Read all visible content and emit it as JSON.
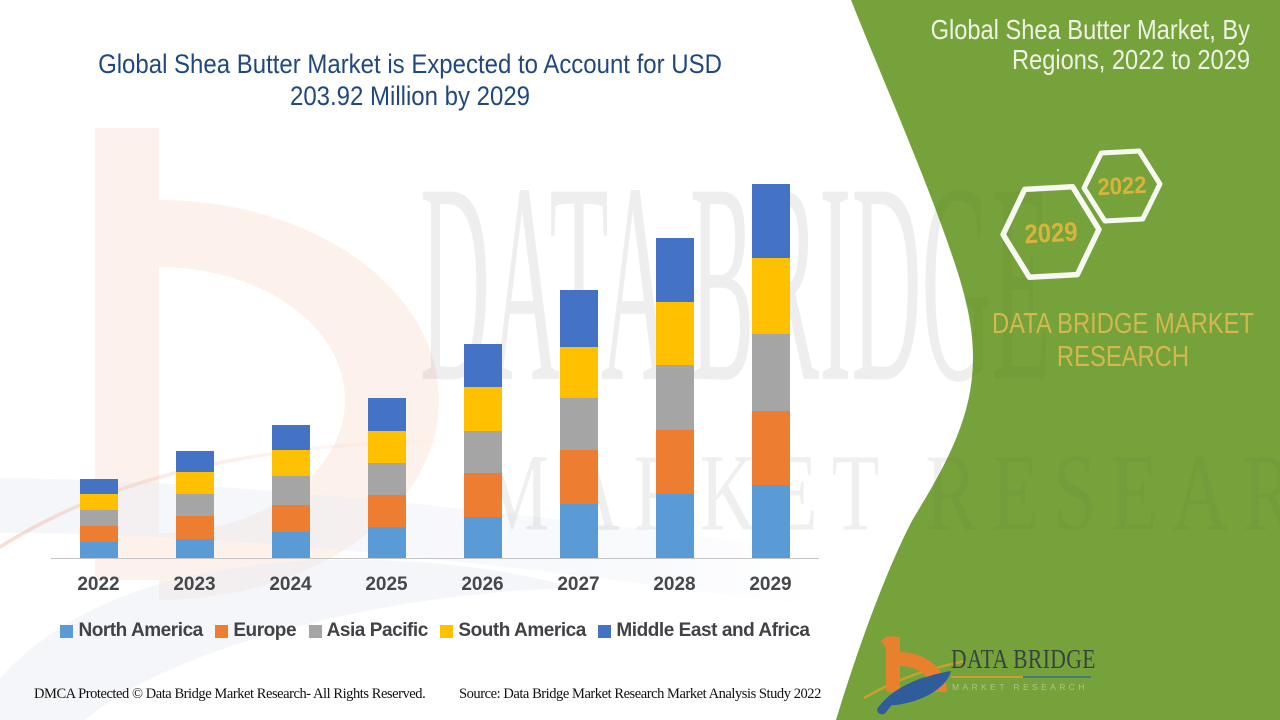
{
  "title": {
    "line1": "Global Shea Butter Market is Expected to Account for USD",
    "line2": "203.92 Million by 2029"
  },
  "band": {
    "color": "#76A23C",
    "title_line1": "Global Shea Butter Market, By",
    "title_line2": "Regions, 2022 to 2029",
    "hexagon_labels": {
      "front": "2029",
      "back": "2022"
    },
    "brand_line1": "DATA BRIDGE MARKET",
    "brand_line2": "RESEARCH",
    "gold_color": "#D2A93B"
  },
  "logo": {
    "name": "DATA BRIDGE",
    "subtitle": "MARKET RESEARCH"
  },
  "watermark": {
    "line1": "DATA BRIDGE",
    "line2": "MARKET RESEARCH"
  },
  "footer": {
    "left": "DMCA Protected © Data Bridge Market Research- All Rights Reserved.",
    "right": "Source: Data Bridge Market Research Market Analysis Study 2022"
  },
  "chart_data": {
    "type": "bar",
    "stacked": true,
    "title": "Global Shea Butter Market is Expected to Account for USD 203.92 Million by 2029",
    "unit": "USD Million",
    "categories": [
      "2022",
      "2023",
      "2024",
      "2025",
      "2026",
      "2027",
      "2028",
      "2029"
    ],
    "series": [
      {
        "name": "North America",
        "color": "#5B9BD5",
        "values": [
          9.2,
          10.9,
          14.4,
          17.1,
          22.8,
          29.6,
          35.3,
          40.2
        ]
      },
      {
        "name": "Europe",
        "color": "#ED7D31",
        "values": [
          8.7,
          12.5,
          15.0,
          17.4,
          23.7,
          29.4,
          34.8,
          40.0
        ]
      },
      {
        "name": "Asia Pacific",
        "color": "#A5A5A5",
        "values": [
          8.7,
          11.7,
          15.5,
          17.7,
          23.1,
          28.3,
          35.1,
          42.0
        ]
      },
      {
        "name": "South America",
        "color": "#FFC000",
        "values": [
          8.7,
          12.2,
          14.1,
          17.1,
          23.9,
          28.0,
          34.5,
          41.5
        ]
      },
      {
        "name": "Middle East and Africa",
        "color": "#4472C4",
        "values": [
          8.2,
          11.4,
          13.9,
          18.2,
          23.4,
          31.0,
          34.8,
          40.2
        ]
      }
    ],
    "totals": [
      43.5,
      58.7,
      72.9,
      87.5,
      116.9,
      146.3,
      174.5,
      203.9
    ],
    "ylim": [
      0,
      210
    ],
    "y_axis_visible": false,
    "gridlines": false,
    "legend_position": "bottom"
  }
}
